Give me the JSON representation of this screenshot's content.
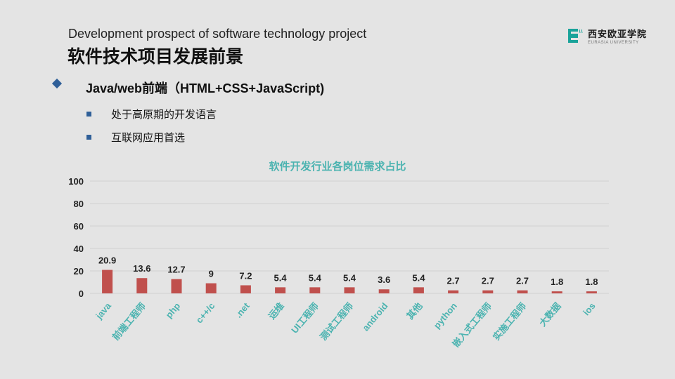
{
  "header": {
    "subtitle_en": "Development prospect of software technology project",
    "title_cn": "软件技术项目发展前景"
  },
  "logo": {
    "name_cn": "西安欧亚学院",
    "name_en": "EURASIA UNIVERSITY",
    "accent_color": "#1aa39a"
  },
  "bullets": {
    "main": "Java/web前端（HTML+CSS+JavaScript)",
    "sub": [
      "处于高原期的开发语言",
      "互联网应用首选"
    ]
  },
  "chart_data": {
    "type": "bar",
    "title": "软件开发行业各岗位需求占比",
    "categories": [
      "java",
      "前端工程师",
      "php",
      "c++/c",
      ".net",
      "运维",
      "UI工程师",
      "测试工程师",
      "android",
      "其他",
      "python",
      "嵌入式工程师",
      "实施工程师",
      "大数据",
      "ios"
    ],
    "values": [
      20.9,
      13.6,
      12.7,
      9,
      7.2,
      5.4,
      5.4,
      5.4,
      3.6,
      5.4,
      2.7,
      2.7,
      2.7,
      1.8,
      1.8
    ],
    "value_labels": [
      "20.9",
      "13.6",
      "12.7",
      "9",
      "7.2",
      "5.4",
      "5.4",
      "5.4",
      "3.6",
      "5.4",
      "2.7",
      "2.7",
      "2.7",
      "1.8",
      "1.8"
    ],
    "ylim": [
      0,
      100
    ],
    "yticks": [
      "0",
      "20",
      "40",
      "60",
      "80",
      "100"
    ],
    "grid": true,
    "bar_color": "#c0504d",
    "category_label_color": "#4bb3b0",
    "xlabel": "",
    "ylabel": ""
  }
}
